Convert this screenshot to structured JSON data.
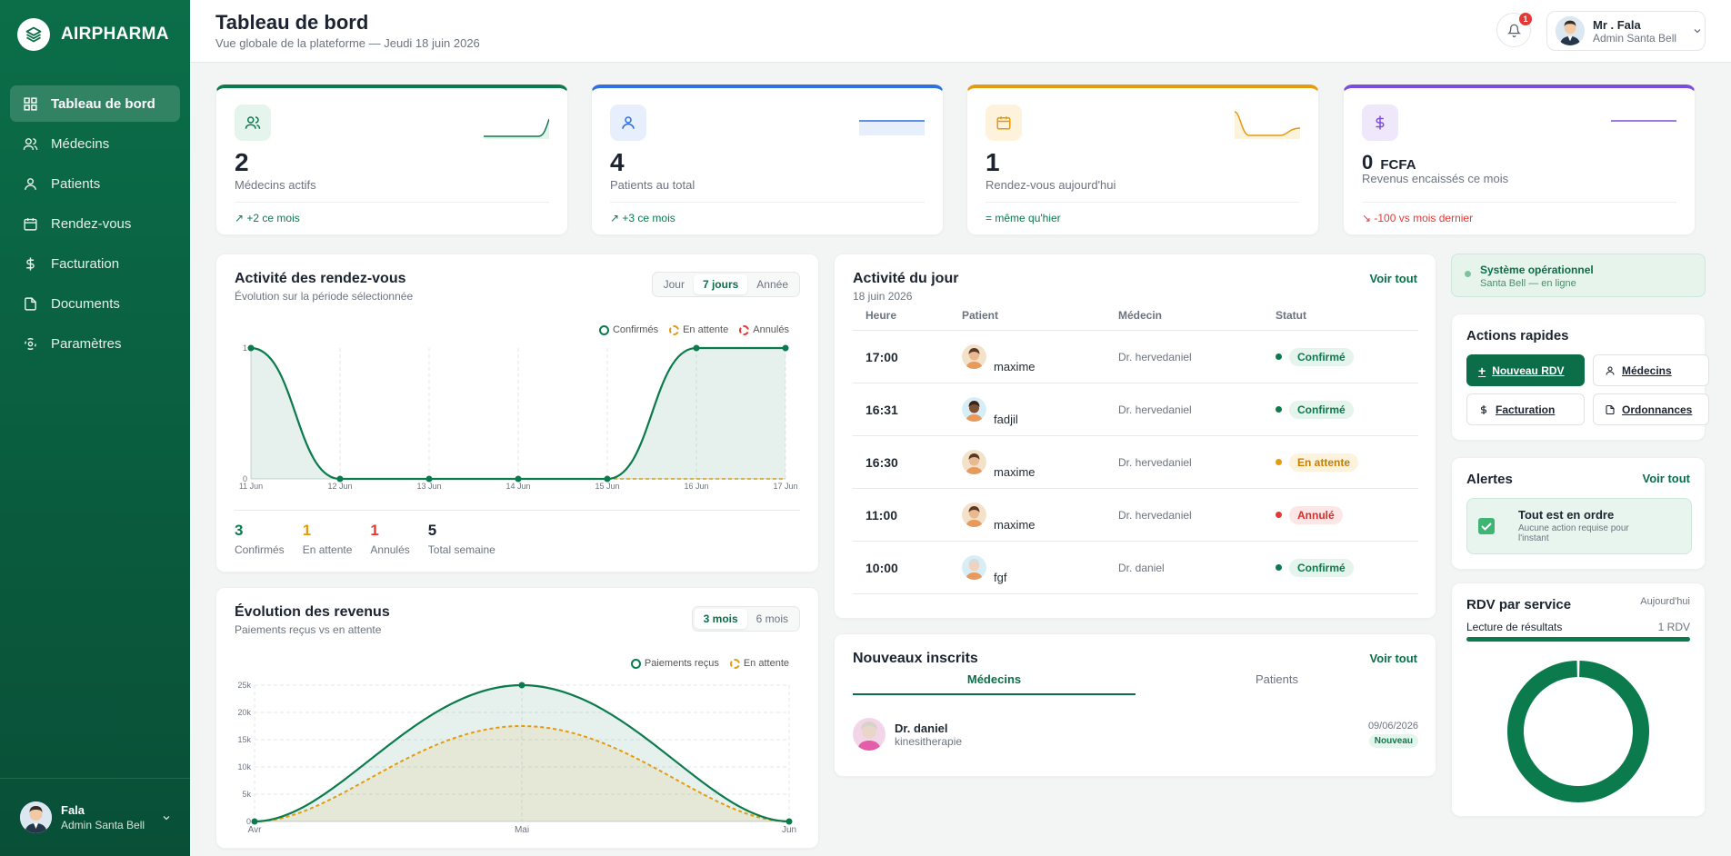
{
  "brand": {
    "name": "AIRPHARMA"
  },
  "sidebar": {
    "items": [
      {
        "label": "Tableau de bord",
        "icon": "grid-icon"
      },
      {
        "label": "Médecins",
        "icon": "users-icon"
      },
      {
        "label": "Patients",
        "icon": "user-icon"
      },
      {
        "label": "Rendez-vous",
        "icon": "calendar-icon"
      },
      {
        "label": "Facturation",
        "icon": "dollar-icon"
      },
      {
        "label": "Documents",
        "icon": "file-icon"
      },
      {
        "label": "Paramètres",
        "icon": "settings-icon"
      }
    ],
    "user": {
      "name": "Fala",
      "role": "Admin Santa Bell"
    }
  },
  "header": {
    "title": "Tableau de bord",
    "subtitle": "Vue globale de la plateforme — Jeudi 18 juin 2026",
    "notif_count": "1",
    "user_name": "Mr . Fala",
    "user_role": "Admin Santa Bell"
  },
  "stats": [
    {
      "value": "2",
      "unit": "",
      "label": "Médecins actifs",
      "trend": "+2 ce mois",
      "color": "#0b7a4d"
    },
    {
      "value": "4",
      "unit": "",
      "label": "Patients au total",
      "trend": "+3 ce mois",
      "color": "#2f6fde"
    },
    {
      "value": "1",
      "unit": "",
      "label": "Rendez-vous aujourd'hui",
      "trend": "= même qu'hier",
      "color": "#e49b0f"
    },
    {
      "value": "0",
      "unit": "FCFA",
      "label": "Revenus encaissés ce mois",
      "trend": "-100 vs mois dernier",
      "color": "#7c4ddb"
    }
  ],
  "activity": {
    "title": "Activité des rendez-vous",
    "subtitle": "Évolution sur la période sélectionnée",
    "tabs": [
      "Jour",
      "7 jours",
      "Année"
    ],
    "active_tab": "7 jours",
    "legend": [
      "Confirmés",
      "En attente",
      "Annulés"
    ],
    "summary": [
      {
        "value": "3",
        "label": "Confirmés",
        "color": "#0b7a4d"
      },
      {
        "value": "1",
        "label": "En attente",
        "color": "#e49b0f"
      },
      {
        "value": "1",
        "label": "Annulés",
        "color": "#e53935"
      },
      {
        "value": "5",
        "label": "Total semaine",
        "color": "#1b2430"
      }
    ]
  },
  "revenue": {
    "title": "Évolution des revenus",
    "subtitle": "Paiements reçus vs en attente",
    "tabs": [
      "3 mois",
      "6 mois"
    ],
    "active_tab": "3 mois",
    "legend": [
      "Paiements reçus",
      "En attente"
    ]
  },
  "chart_data": [
    {
      "type": "line",
      "x": [
        "11 Jun",
        "12 Jun",
        "13 Jun",
        "14 Jun",
        "15 Jun",
        "16 Jun",
        "17 Jun"
      ],
      "ylim": [
        0,
        1
      ],
      "yticks": [
        "0",
        "1"
      ],
      "series": [
        {
          "name": "Confirmés",
          "values": [
            1,
            0,
            0,
            0,
            0,
            1,
            1
          ],
          "color": "#0b7a4d"
        },
        {
          "name": "En attente",
          "values": [
            0,
            0,
            0,
            0,
            0,
            0,
            0
          ],
          "color": "#e49b0f"
        },
        {
          "name": "Annulés",
          "values": [
            0,
            0,
            0,
            0,
            0,
            0,
            0
          ],
          "color": "#e53935"
        }
      ]
    },
    {
      "type": "area",
      "x": [
        "Avr",
        "Mai",
        "Jun"
      ],
      "ylim": [
        0,
        25000
      ],
      "yticks": [
        "0",
        "5k",
        "10k",
        "15k",
        "20k",
        "25k"
      ],
      "series": [
        {
          "name": "Paiements reçus",
          "values": [
            0,
            25000,
            0
          ],
          "color": "#0b7a4d"
        },
        {
          "name": "En attente",
          "values": [
            0,
            17500,
            0
          ],
          "color": "#e49b0f"
        }
      ]
    },
    {
      "type": "pie",
      "categories": [
        "Lecture de résultats"
      ],
      "values": [
        1
      ],
      "color": "#0b7a4d"
    }
  ],
  "today": {
    "title": "Activité du jour",
    "date": "18 juin 2026",
    "link": "Voir tout",
    "columns": [
      "Heure",
      "Patient",
      "Médecin",
      "Statut"
    ],
    "rows": [
      {
        "time": "17:00",
        "patient": "maxime",
        "doctor": "Dr. hervedaniel",
        "status": "Confirmé",
        "kind": "ok"
      },
      {
        "time": "16:31",
        "patient": "fadjil",
        "doctor": "Dr. hervedaniel",
        "status": "Confirmé",
        "kind": "ok"
      },
      {
        "time": "16:30",
        "patient": "maxime",
        "doctor": "Dr. hervedaniel",
        "status": "En attente",
        "kind": "wait"
      },
      {
        "time": "11:00",
        "patient": "maxime",
        "doctor": "Dr. hervedaniel",
        "status": "Annulé",
        "kind": "cancel"
      },
      {
        "time": "10:00",
        "patient": "fgf",
        "doctor": "Dr. daniel",
        "status": "Confirmé",
        "kind": "ok"
      }
    ]
  },
  "new_signups": {
    "title": "Nouveaux inscrits",
    "link": "Voir tout",
    "tabs": [
      "Médecins",
      "Patients"
    ],
    "active_tab": "Médecins",
    "items": [
      {
        "name": "Dr. daniel",
        "specialty": "kinesitherapie",
        "date": "09/06/2026",
        "badge": "Nouveau"
      }
    ]
  },
  "system": {
    "title": "Système opérationnel",
    "subtitle": "Santa Bell — en ligne"
  },
  "quick_actions": {
    "title": "Actions rapides",
    "buttons": [
      "Nouveau RDV",
      "Médecins",
      "Facturation",
      "Ordonnances"
    ]
  },
  "alerts": {
    "title": "Alertes",
    "link": "Voir tout",
    "message": "Tout est en ordre",
    "detail": "Aucune action requise pour l'instant"
  },
  "rdv_service": {
    "title": "RDV par service",
    "period": "Aujourd'hui",
    "service": "Lecture de résultats",
    "count": "1 RDV"
  }
}
